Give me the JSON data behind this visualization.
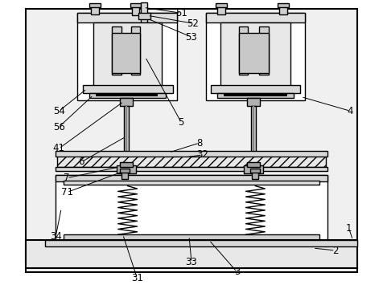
{
  "bg_color": "#ffffff",
  "lc": "#000000",
  "gray_light": "#e8e8e8",
  "gray_mid": "#d0d0d0",
  "gray_dark": "#a0a0a0"
}
